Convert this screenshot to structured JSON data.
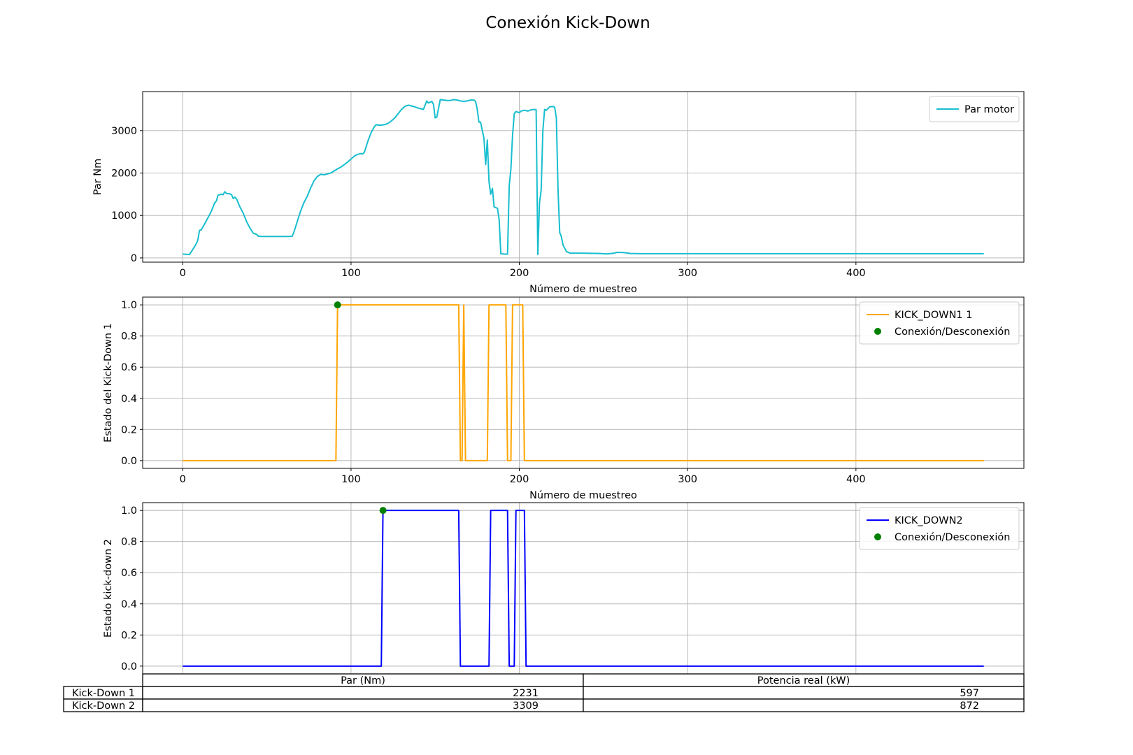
{
  "title": "Conexión Kick-Down",
  "chart_data": [
    {
      "type": "line",
      "xlabel": "Número de muestreo",
      "ylabel": "Par Nm",
      "xlim": [
        -23.8,
        499.8
      ],
      "ylim": [
        -100,
        3920
      ],
      "x_ticks": [
        "0",
        "100",
        "200",
        "300",
        "400"
      ],
      "y_ticks": [
        "0",
        "1000",
        "2000",
        "3000"
      ],
      "grid": true,
      "legend": "top-right",
      "series": [
        {
          "name": "Par motor",
          "color": "#17becf",
          "points": [
            [
              0,
              90
            ],
            [
              2,
              85
            ],
            [
              4,
              80
            ],
            [
              6,
              200
            ],
            [
              8,
              330
            ],
            [
              9,
              420
            ],
            [
              10,
              650
            ],
            [
              11,
              660
            ],
            [
              13,
              800
            ],
            [
              15,
              950
            ],
            [
              17,
              1100
            ],
            [
              19,
              1300
            ],
            [
              20,
              1340
            ],
            [
              21,
              1480
            ],
            [
              23,
              1500
            ],
            [
              24,
              1490
            ],
            [
              25,
              1560
            ],
            [
              26,
              1520
            ],
            [
              28,
              1510
            ],
            [
              29,
              1490
            ],
            [
              30,
              1400
            ],
            [
              31,
              1430
            ],
            [
              32,
              1390
            ],
            [
              34,
              1200
            ],
            [
              36,
              1050
            ],
            [
              38,
              850
            ],
            [
              40,
              700
            ],
            [
              42,
              580
            ],
            [
              44,
              550
            ],
            [
              45,
              510
            ],
            [
              47,
              505
            ],
            [
              50,
              505
            ],
            [
              55,
              505
            ],
            [
              60,
              505
            ],
            [
              63,
              505
            ],
            [
              65,
              510
            ],
            [
              66,
              600
            ],
            [
              68,
              850
            ],
            [
              70,
              1100
            ],
            [
              72,
              1300
            ],
            [
              74,
              1450
            ],
            [
              76,
              1650
            ],
            [
              78,
              1820
            ],
            [
              80,
              1920
            ],
            [
              82,
              1970
            ],
            [
              84,
              1960
            ],
            [
              86,
              1980
            ],
            [
              88,
              2000
            ],
            [
              90,
              2050
            ],
            [
              92,
              2100
            ],
            [
              94,
              2140
            ],
            [
              96,
              2200
            ],
            [
              98,
              2260
            ],
            [
              100,
              2330
            ],
            [
              102,
              2400
            ],
            [
              104,
              2440
            ],
            [
              106,
              2460
            ],
            [
              107,
              2450
            ],
            [
              108,
              2500
            ],
            [
              110,
              2750
            ],
            [
              112,
              2960
            ],
            [
              114,
              3100
            ],
            [
              115,
              3140
            ],
            [
              116,
              3130
            ],
            [
              118,
              3130
            ],
            [
              120,
              3140
            ],
            [
              122,
              3170
            ],
            [
              124,
              3230
            ],
            [
              126,
              3300
            ],
            [
              128,
              3400
            ],
            [
              130,
              3500
            ],
            [
              132,
              3570
            ],
            [
              134,
              3600
            ],
            [
              136,
              3580
            ],
            [
              138,
              3560
            ],
            [
              140,
              3530
            ],
            [
              142,
              3510
            ],
            [
              143,
              3500
            ],
            [
              145,
              3700
            ],
            [
              146,
              3650
            ],
            [
              148,
              3690
            ],
            [
              149,
              3620
            ],
            [
              150,
              3300
            ],
            [
              151,
              3320
            ],
            [
              153,
              3730
            ],
            [
              155,
              3720
            ],
            [
              157,
              3710
            ],
            [
              159,
              3710
            ],
            [
              161,
              3730
            ],
            [
              163,
              3720
            ],
            [
              165,
              3700
            ],
            [
              167,
              3690
            ],
            [
              169,
              3700
            ],
            [
              171,
              3720
            ],
            [
              173,
              3720
            ],
            [
              174,
              3690
            ],
            [
              175,
              3500
            ],
            [
              176,
              3200
            ],
            [
              177,
              3200
            ],
            [
              178,
              3000
            ],
            [
              179,
              2820
            ],
            [
              180,
              2200
            ],
            [
              181,
              2780
            ],
            [
              182,
              1800
            ],
            [
              183,
              1500
            ],
            [
              184,
              1640
            ],
            [
              185,
              1200
            ],
            [
              187,
              1170
            ],
            [
              188,
              900
            ],
            [
              189,
              100
            ],
            [
              191,
              90
            ],
            [
              193,
              90
            ],
            [
              194,
              1700
            ],
            [
              195,
              2100
            ],
            [
              196,
              2900
            ],
            [
              197,
              3400
            ],
            [
              198,
              3450
            ],
            [
              200,
              3420
            ],
            [
              201,
              3460
            ],
            [
              203,
              3480
            ],
            [
              205,
              3460
            ],
            [
              207,
              3490
            ],
            [
              209,
              3500
            ],
            [
              210,
              3490
            ],
            [
              211,
              80
            ],
            [
              212,
              1300
            ],
            [
              213,
              1600
            ],
            [
              214,
              3000
            ],
            [
              215,
              3500
            ],
            [
              216,
              3480
            ],
            [
              218,
              3560
            ],
            [
              220,
              3570
            ],
            [
              221,
              3550
            ],
            [
              222,
              3300
            ],
            [
              223,
              1600
            ],
            [
              224,
              600
            ],
            [
              225,
              500
            ],
            [
              226,
              300
            ],
            [
              228,
              150
            ],
            [
              230,
              115
            ],
            [
              240,
              110
            ],
            [
              248,
              105
            ],
            [
              252,
              95
            ],
            [
              256,
              110
            ],
            [
              258,
              130
            ],
            [
              262,
              125
            ],
            [
              266,
              105
            ],
            [
              272,
              100
            ],
            [
              280,
              100
            ],
            [
              300,
              100
            ],
            [
              320,
              100
            ],
            [
              360,
              100
            ],
            [
              400,
              100
            ],
            [
              440,
              100
            ],
            [
              476,
              100
            ]
          ]
        }
      ]
    },
    {
      "type": "line",
      "xlabel": "Número de muestreo",
      "ylabel": "Estado del Kick-Down 1",
      "xlim": [
        -23.8,
        499.8
      ],
      "ylim": [
        -0.05,
        1.05
      ],
      "x_ticks": [
        "0",
        "100",
        "200",
        "300",
        "400"
      ],
      "y_ticks": [
        "0.0",
        "0.2",
        "0.4",
        "0.6",
        "0.8",
        "1.0"
      ],
      "grid": true,
      "legend": "top-right",
      "series": [
        {
          "name": "KICK_DOWN1 1",
          "color": "#ffa500",
          "points": [
            [
              0,
              0
            ],
            [
              91,
              0
            ],
            [
              92,
              1
            ],
            [
              164,
              1
            ],
            [
              165,
              0
            ],
            [
              166,
              0
            ],
            [
              167,
              1
            ],
            [
              168,
              0
            ],
            [
              181,
              0
            ],
            [
              182,
              1
            ],
            [
              192,
              1
            ],
            [
              193,
              0
            ],
            [
              195,
              0
            ],
            [
              196,
              1
            ],
            [
              202,
              1
            ],
            [
              203,
              0
            ],
            [
              476,
              0
            ]
          ]
        },
        {
          "name": "Conexión/Desconexión",
          "color": "#008000",
          "marker": "circle",
          "points": [
            [
              92,
              1
            ]
          ]
        }
      ]
    },
    {
      "type": "line",
      "xlabel": "",
      "ylabel": "Estado kick-down 2",
      "xlim": [
        -23.8,
        499.8
      ],
      "ylim": [
        -0.05,
        1.05
      ],
      "y_ticks": [
        "0.0",
        "0.2",
        "0.4",
        "0.6",
        "0.8",
        "1.0"
      ],
      "grid": true,
      "legend": "top-right",
      "series": [
        {
          "name": "KICK_DOWN2",
          "color": "#0000ff",
          "points": [
            [
              0,
              0
            ],
            [
              118,
              0
            ],
            [
              119,
              1
            ],
            [
              164,
              1
            ],
            [
              165,
              0
            ],
            [
              182,
              0
            ],
            [
              183,
              1
            ],
            [
              193,
              1
            ],
            [
              194,
              0
            ],
            [
              197,
              0
            ],
            [
              198,
              1
            ],
            [
              203,
              1
            ],
            [
              204,
              0
            ],
            [
              476,
              0
            ]
          ]
        },
        {
          "name": "Conexión/Desconexión",
          "color": "#008000",
          "marker": "circle",
          "points": [
            [
              119,
              1
            ]
          ]
        }
      ]
    }
  ],
  "table": {
    "columns": [
      "Par (Nm)",
      "Potencia real (kW)"
    ],
    "rows": [
      {
        "label": "Kick-Down 1",
        "values": [
          "2231",
          "597"
        ]
      },
      {
        "label": "Kick-Down 2",
        "values": [
          "3309",
          "872"
        ]
      }
    ]
  }
}
